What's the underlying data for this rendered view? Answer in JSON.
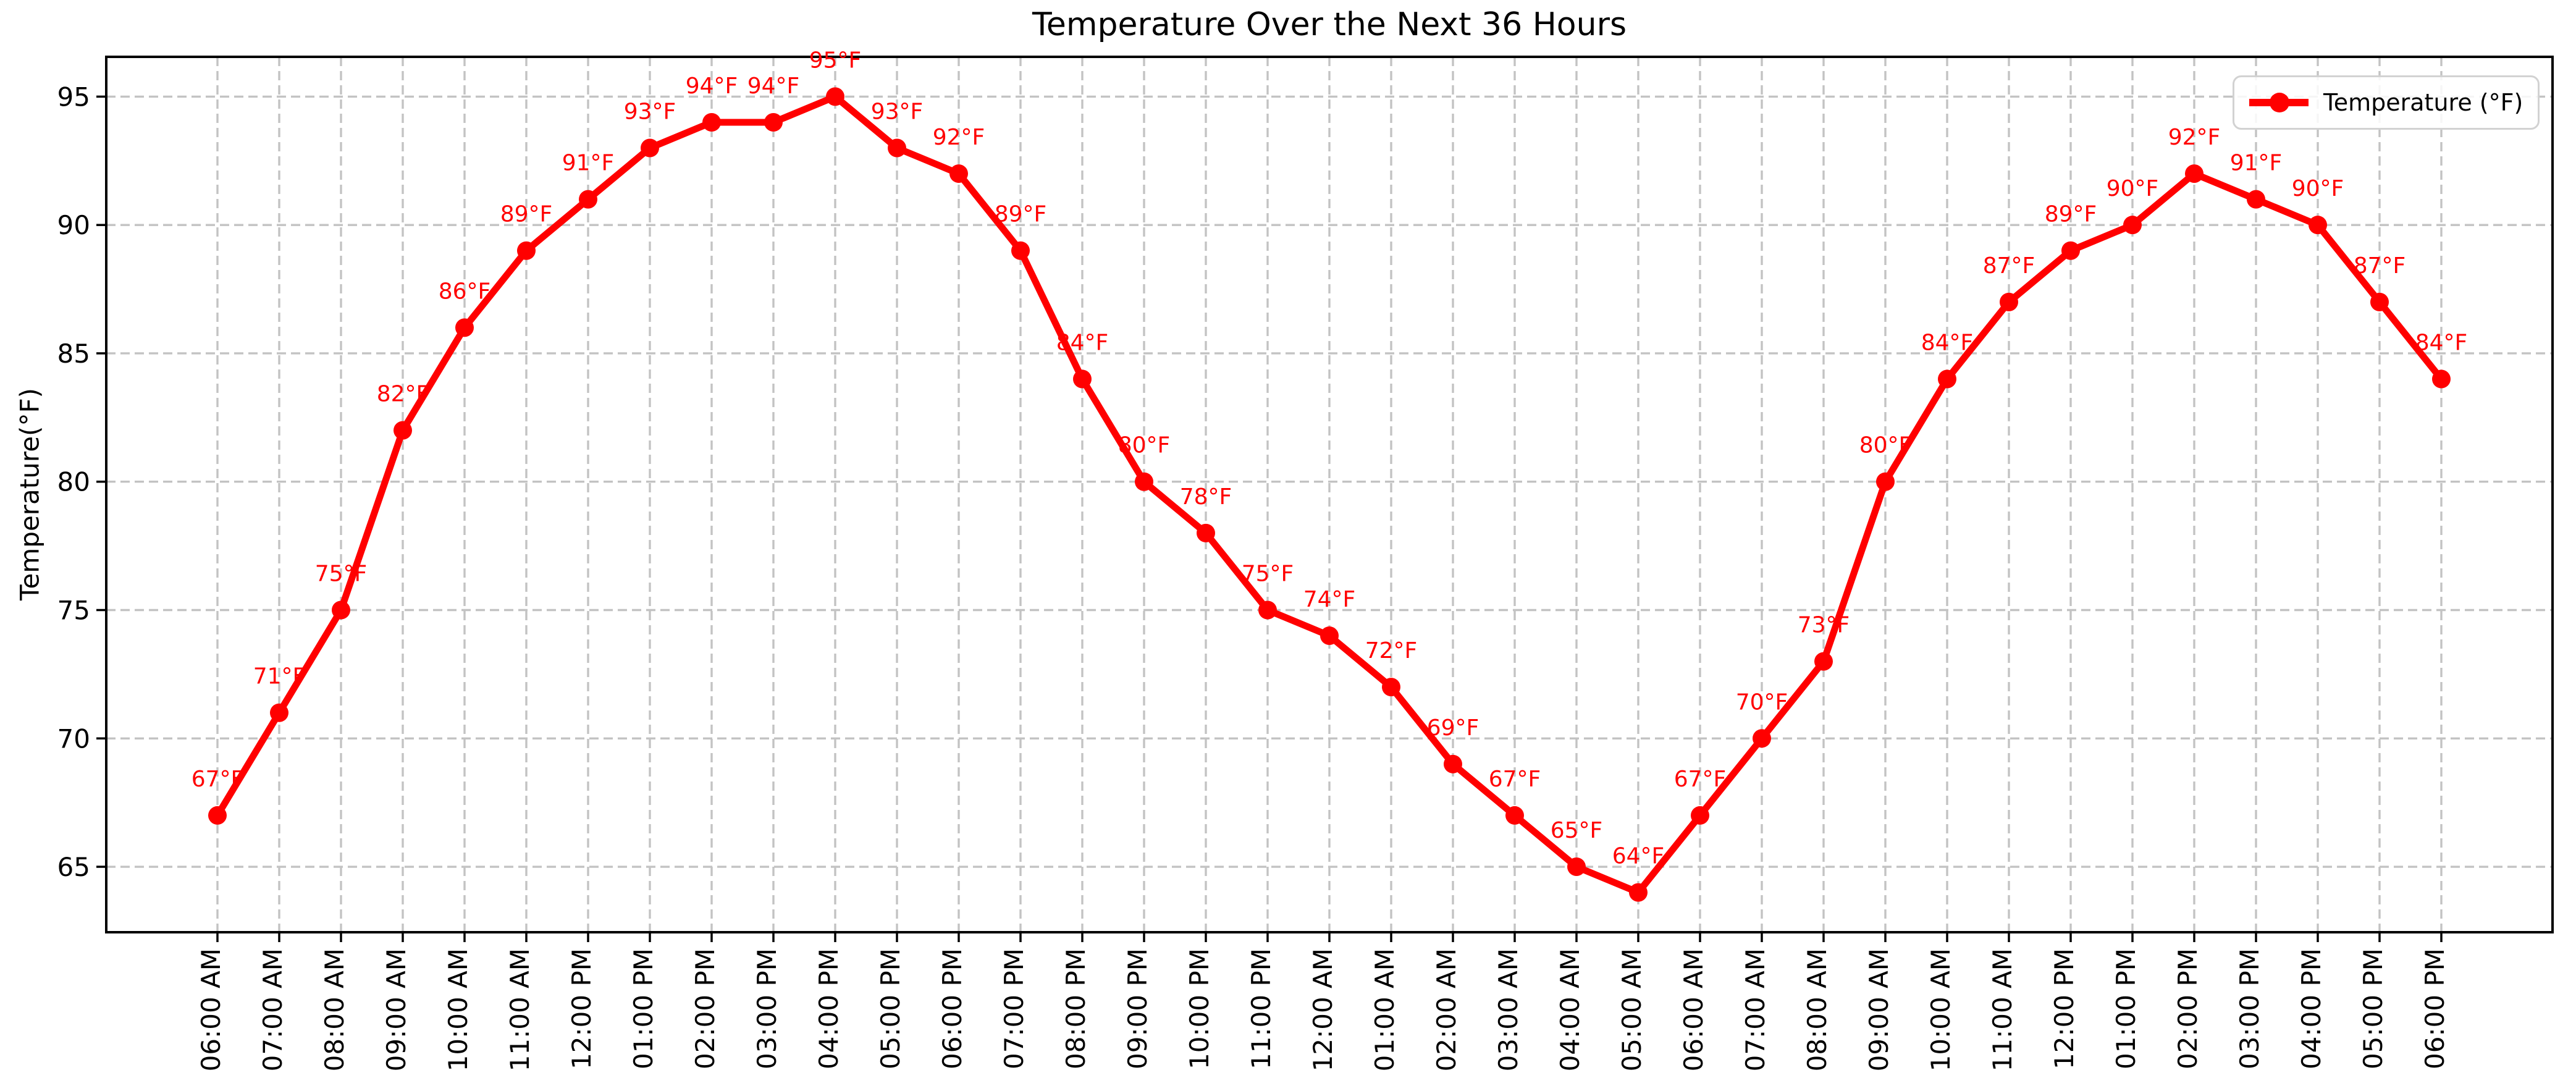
{
  "chart_data": {
    "type": "line",
    "title": "Temperature Over the Next 36 Hours",
    "ylabel": "Temperature(°F)",
    "xlabel": "",
    "legend_label": "Temperature (°F)",
    "legend_position": "upper right",
    "unit_suffix": "°F",
    "categories": [
      "06:00 AM",
      "07:00 AM",
      "08:00 AM",
      "09:00 AM",
      "10:00 AM",
      "11:00 AM",
      "12:00 PM",
      "01:00 PM",
      "02:00 PM",
      "03:00 PM",
      "04:00 PM",
      "05:00 PM",
      "06:00 PM",
      "07:00 PM",
      "08:00 PM",
      "09:00 PM",
      "10:00 PM",
      "11:00 PM",
      "12:00 AM",
      "01:00 AM",
      "02:00 AM",
      "03:00 AM",
      "04:00 AM",
      "05:00 AM",
      "06:00 AM",
      "07:00 AM",
      "08:00 AM",
      "09:00 AM",
      "10:00 AM",
      "11:00 AM",
      "12:00 PM",
      "01:00 PM",
      "02:00 PM",
      "03:00 PM",
      "04:00 PM",
      "05:00 PM",
      "06:00 PM"
    ],
    "series": [
      {
        "name": "Temperature (°F)",
        "values": [
          67,
          71,
          75,
          82,
          86,
          89,
          91,
          93,
          94,
          94,
          95,
          93,
          92,
          89,
          84,
          80,
          78,
          75,
          74,
          72,
          69,
          67,
          65,
          64,
          67,
          70,
          73,
          80,
          84,
          87,
          89,
          90,
          92,
          91,
          90,
          87,
          84
        ]
      }
    ],
    "point_label_format": "value + °F",
    "yticks": [
      65,
      70,
      75,
      80,
      85,
      90,
      95
    ],
    "ylim": [
      62.45,
      96.55
    ],
    "grid": {
      "visible": true,
      "style": "dashed",
      "color": "#c3c3c3"
    },
    "colors": {
      "line": "#ff0000",
      "marker": "#ff0000",
      "point_labels": "#ff0000",
      "axis": "#000000",
      "tick_labels": "#000000",
      "background": "#ffffff",
      "legend_border": "#d2d2d2"
    }
  }
}
